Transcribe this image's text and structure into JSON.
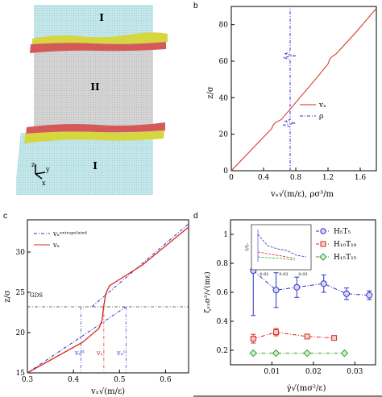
{
  "panels": {
    "a": {
      "letter": "a",
      "region_labels": [
        "I",
        "II",
        "I"
      ],
      "axes_labels": {
        "z": "z",
        "y": "y",
        "x": "x"
      },
      "colors": {
        "fluid": "#c4e7ea",
        "solid": "#d4d4d4",
        "red_layer": "#d45a5a",
        "yellow_layer": "#d6d640"
      }
    },
    "b": {
      "letter": "b",
      "ylabel": "z/σ",
      "xlabel": "vₓ√(m/ε), ρσ³/m",
      "chart_data": {
        "type": "line",
        "xlim": [
          0,
          1.8
        ],
        "ylim": [
          0,
          90
        ],
        "xticks": [
          "0",
          "0.4",
          "0.8",
          "1.2",
          "1.6"
        ],
        "yticks": [
          "0",
          "20",
          "40",
          "60",
          "80"
        ],
        "legend": "center-right",
        "series": [
          {
            "name": "vₓ",
            "color": "#d62a1e",
            "x": [
              0,
              0.5,
              0.52,
              0.55,
              0.62,
              0.85,
              1.1,
              1.2,
              1.22,
              1.25,
              1.3,
              1.55,
              1.8
            ],
            "y": [
              0,
              23,
              25,
              26.5,
              28,
              40,
              53,
              58.5,
              61,
              62.5,
              64,
              76,
              89
            ]
          },
          {
            "name": "ρ",
            "color": "#3232c8",
            "x": [
              0.73,
              0.73,
              0.64,
              0.8,
              0.66,
              0.73,
              0.73,
              0.64,
              0.8,
              0.66,
              0.73,
              0.73
            ],
            "y": [
              0,
              24,
              25,
              26,
              27,
              28,
              61,
              62,
              63,
              64,
              65,
              90
            ]
          }
        ]
      }
    },
    "c": {
      "letter": "c",
      "ylabel": "z/σ",
      "xlabel": "vₓ√(m/ε)",
      "gds_label": "GDS",
      "velocity_labels": [
        "vₓᴵᴵ",
        "vₓᴵ",
        "vₓᴵ"
      ],
      "chart_data": {
        "type": "line",
        "xlim": [
          0.3,
          0.65
        ],
        "ylim": [
          15,
          34
        ],
        "xticks": [
          "0.3",
          "0.4",
          "0.5",
          "0.6"
        ],
        "yticks": [
          "15",
          "20",
          "25",
          "30"
        ],
        "legend": "top-left",
        "series": [
          {
            "name": "vₓᵉˣᵗʳᵃᵖᵒˡᵃᵗᵉᵈ",
            "color": "#3232c8",
            "dashed": true,
            "x": [
              0.3,
              0.514,
              0.44,
              0.65
            ],
            "y": [
              15,
              23.2,
              23.2,
              33.5
            ]
          },
          {
            "name": "vₓ",
            "color": "#d62a1e",
            "x": [
              0.3,
              0.42,
              0.455,
              0.462,
              0.465,
              0.47,
              0.478,
              0.5,
              0.55,
              0.65
            ],
            "y": [
              15,
              18.8,
              20.5,
              21.5,
              23,
              24.8,
              25.8,
              26.6,
              28.4,
              33.1
            ]
          }
        ],
        "gds_z": 23.2,
        "vertical_marks": [
          0.416,
          0.466,
          0.514
        ]
      }
    },
    "d": {
      "letter": "d",
      "ylabel": "ζₓₓσ³/√(mε)",
      "xlabel": "γ̇√(mσ²/ε)",
      "chart_data": {
        "type": "scatter",
        "xlim": [
          0,
          0.035
        ],
        "ylim": [
          0.1,
          1.1
        ],
        "xticks": [
          "0.01",
          "0.02",
          "0.03"
        ],
        "yticks": [
          "0.2",
          "0.4",
          "0.6",
          "0.8",
          "1"
        ],
        "legend": "top-right",
        "series": [
          {
            "name": "H₅T₅",
            "color": "#3232c8",
            "marker": "circle",
            "x": [
              0.0055,
              0.011,
              0.016,
              0.0225,
              0.028,
              0.0335
            ],
            "y": [
              0.75,
              0.615,
              0.635,
              0.66,
              0.59,
              0.58
            ],
            "err": [
              0.31,
              0.12,
              0.07,
              0.06,
              0.04,
              0.03
            ]
          },
          {
            "name": "H₁₀T₁₀",
            "color": "#d62a1e",
            "marker": "square",
            "x": [
              0.0055,
              0.011,
              0.0185,
              0.025
            ],
            "y": [
              0.28,
              0.325,
              0.295,
              0.285
            ],
            "err": [
              0.03,
              0.025,
              0.01,
              0.01
            ]
          },
          {
            "name": "H₁₅T₁₅",
            "color": "#2ea02e",
            "marker": "diamond",
            "x": [
              0.0055,
              0.011,
              0.0185,
              0.0275
            ],
            "y": [
              0.18,
              0.18,
              0.18,
              0.18
            ],
            "err": [
              0.005,
              0.005,
              0.005,
              0.005
            ]
          }
        ],
        "inset": {
          "ylabel": "ζ/ζ₀",
          "xticks": [
            "0.01",
            "0.02",
            "0.03"
          ]
        }
      }
    }
  }
}
